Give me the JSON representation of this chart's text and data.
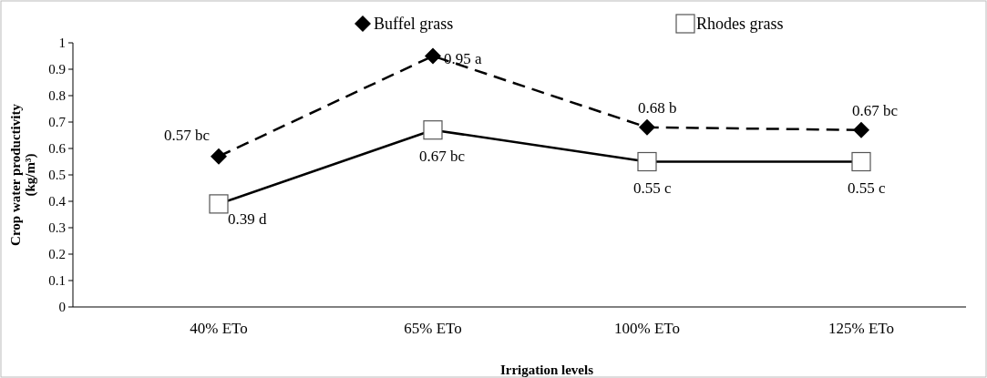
{
  "chart_data": {
    "type": "line",
    "xlabel": "Irrigation levels",
    "ylabel": "Crop water productivity (kg/m³)",
    "categories": [
      "40% ETo",
      "65% ETo",
      "100% ETo",
      "125% ETo"
    ],
    "ylim": [
      0,
      1
    ],
    "yticks": [
      0,
      0.1,
      0.2,
      0.3,
      0.4,
      0.5,
      0.6,
      0.7,
      0.8,
      0.9,
      1
    ],
    "grid": false,
    "legend": "top",
    "series": [
      {
        "name": "Buffel grass",
        "color": "#000000",
        "marker": "diamond",
        "line_style": "dashed",
        "values": [
          0.57,
          0.95,
          0.68,
          0.67
        ],
        "value_labels": [
          "0.57 bc",
          "0.95 a",
          "0.68 b",
          "0.67 bc"
        ]
      },
      {
        "name": "Rhodes grass",
        "color": "#000000",
        "marker": "square",
        "line_style": "solid",
        "values": [
          0.39,
          0.67,
          0.55,
          0.55
        ],
        "value_labels": [
          "0.39 d",
          "0.67 bc",
          "0.55 c",
          "0.55 c"
        ]
      }
    ]
  }
}
